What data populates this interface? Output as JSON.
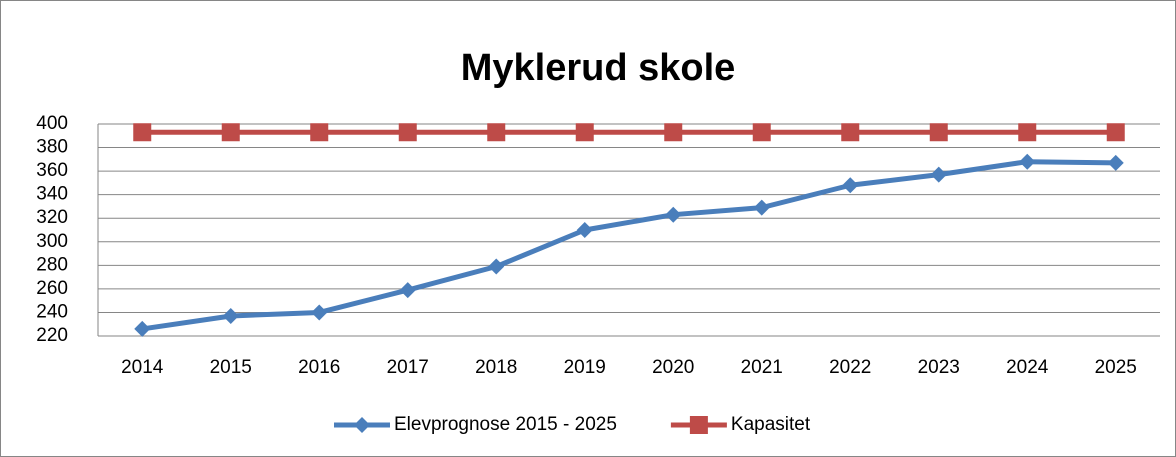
{
  "chart_data": {
    "type": "line",
    "title": "Myklerud skole",
    "categories": [
      "2014",
      "2015",
      "2016",
      "2017",
      "2018",
      "2019",
      "2020",
      "2021",
      "2022",
      "2023",
      "2024",
      "2025"
    ],
    "series": [
      {
        "name": "Elevprognose 2015 - 2025",
        "color": "#4a7ebb",
        "marker": "diamond",
        "values": [
          226,
          237,
          240,
          259,
          279,
          310,
          323,
          329,
          348,
          357,
          368,
          367
        ]
      },
      {
        "name": "Kapasitet",
        "color": "#be4b48",
        "marker": "square",
        "values": [
          393,
          393,
          393,
          393,
          393,
          393,
          393,
          393,
          393,
          393,
          393,
          393
        ]
      }
    ],
    "ylim": [
      220,
      400
    ],
    "yticks": [
      220,
      240,
      260,
      280,
      300,
      320,
      340,
      360,
      380,
      400
    ],
    "grid": true,
    "legend": "bottom"
  }
}
